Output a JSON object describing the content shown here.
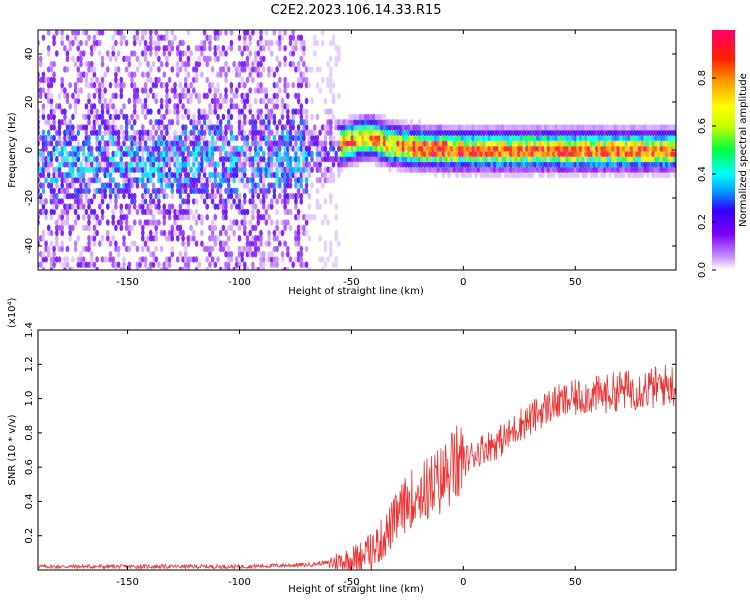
{
  "title": "C2E2.2023.106.14.33.R15",
  "chart_data": [
    {
      "type": "heatmap",
      "title": "C2E2.2023.106.14.33.R15",
      "xlabel": "Height of straight line (km)",
      "ylabel": "Frequency (Hz)",
      "xlim": [
        -190,
        95
      ],
      "ylim": [
        -50,
        50
      ],
      "x_ticks": [
        -150,
        -100,
        -50,
        0,
        50
      ],
      "x_tick_labels": [
        "-150",
        "-100",
        "-50",
        "0",
        "50"
      ],
      "y_ticks": [
        -40,
        -20,
        0,
        20,
        40
      ],
      "y_tick_labels": [
        "-40",
        "-20",
        "0",
        "20",
        "40"
      ],
      "colorbar": {
        "label": "Normalized spectral amplitude",
        "range": [
          0,
          1
        ],
        "ticks": [
          0.0,
          0.2,
          0.4,
          0.6,
          0.8
        ],
        "tick_labels": [
          "0.0",
          "0.2",
          "0.4",
          "0.6",
          "0.8"
        ],
        "colormap": "rainbow",
        "colors": [
          "#ffffff",
          "#cc99ff",
          "#7a00ff",
          "#3300ff",
          "#00a0ff",
          "#00ffff",
          "#00ff40",
          "#c8ff00",
          "#ffff00",
          "#ffa000",
          "#ff2000",
          "#ff0066"
        ]
      },
      "ridge": {
        "x": [
          -190,
          -150,
          -100,
          -70,
          -55,
          -45,
          -40,
          -35,
          -25,
          0,
          20,
          40,
          60,
          80,
          95
        ],
        "y": [
          -5,
          -4,
          -4,
          -3,
          2,
          5,
          5,
          3,
          1,
          0,
          0,
          0,
          0,
          0,
          0
        ]
      },
      "grid": false
    },
    {
      "type": "line",
      "xlabel": "Height of straight line (km)",
      "ylabel": "SNR (10 * v/v)",
      "y_scale_note": "(x10⁴)",
      "xlim": [
        -190,
        95
      ],
      "ylim": [
        0,
        1.4
      ],
      "x_ticks": [
        -150,
        -100,
        -50,
        0,
        50
      ],
      "x_tick_labels": [
        "-150",
        "-100",
        "-50",
        "0",
        "50"
      ],
      "y_ticks": [
        0.2,
        0.4,
        0.6,
        0.8,
        1.0,
        1.2,
        1.4
      ],
      "y_tick_labels": [
        "0.2",
        "0.4",
        "0.6",
        "0.8",
        "1.0",
        "1.2",
        "1.4"
      ],
      "series": [
        {
          "color": "#ee3333",
          "x": [
            -190,
            -150,
            -100,
            -70,
            -55,
            -50,
            -45,
            -40,
            -35,
            -30,
            -25,
            -20,
            -15,
            -10,
            -5,
            0,
            5,
            10,
            15,
            20,
            25,
            30,
            35,
            40,
            45,
            50,
            55,
            60,
            65,
            70,
            75,
            80,
            85,
            90,
            95
          ],
          "values": [
            0.02,
            0.02,
            0.02,
            0.03,
            0.05,
            0.06,
            0.08,
            0.12,
            0.2,
            0.3,
            0.4,
            0.45,
            0.48,
            0.52,
            0.6,
            0.63,
            0.68,
            0.72,
            0.74,
            0.78,
            0.85,
            0.88,
            0.93,
            0.97,
            0.98,
            1.0,
            1.02,
            1.02,
            1.03,
            1.05,
            1.05,
            1.06,
            1.06,
            1.08,
            1.08
          ]
        }
      ],
      "grid": false
    }
  ]
}
